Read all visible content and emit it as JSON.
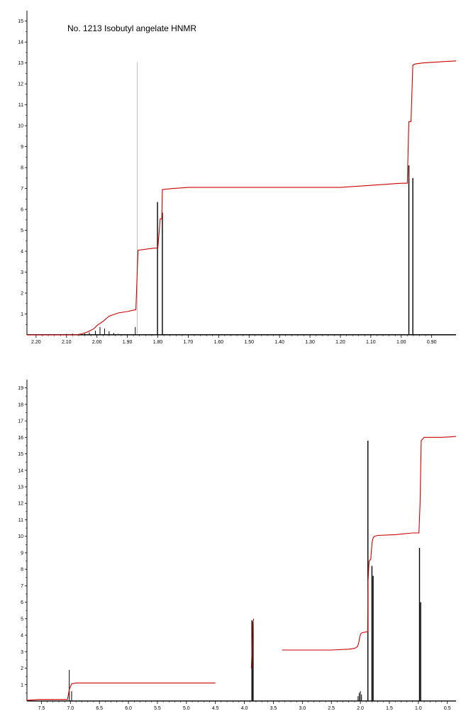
{
  "chart_data": [
    {
      "type": "line",
      "title": "No. 1213 Isobutyl angelate  HNMR",
      "xlabel": "",
      "ylabel": "",
      "x_reversed": true,
      "xlim": [
        2.23,
        0.82
      ],
      "ylim": [
        0,
        15.5
      ],
      "x_ticks": [
        "2.20",
        "2.10",
        "2.00",
        "1.90",
        "1.80",
        "1.70",
        "1.60",
        "1.50",
        "1.40",
        "1.30",
        "1.20",
        "1.10",
        "1.00",
        "0.90"
      ],
      "y_ticks": [
        "1",
        "2",
        "3",
        "4",
        "5",
        "6",
        "7",
        "8",
        "9",
        "10",
        "11",
        "12",
        "13",
        "14",
        "15"
      ],
      "colors": {
        "spectrum": "#000000",
        "integral": "#cc0000"
      },
      "spectrum_peaks": [
        {
          "x": 2.1,
          "y": 0.05
        },
        {
          "x": 2.08,
          "y": 0.06
        },
        {
          "x": 2.06,
          "y": 0.05
        },
        {
          "x": 2.04,
          "y": 0.07
        },
        {
          "x": 2.025,
          "y": 0.12
        },
        {
          "x": 2.005,
          "y": 0.2
        },
        {
          "x": 1.99,
          "y": 0.38
        },
        {
          "x": 1.975,
          "y": 0.3
        },
        {
          "x": 1.96,
          "y": 0.18
        },
        {
          "x": 1.945,
          "y": 0.1
        },
        {
          "x": 1.93,
          "y": 0.05
        },
        {
          "x": 1.874,
          "y": 0.38
        },
        {
          "x": 1.868,
          "y": 13.05
        },
        {
          "x": 1.801,
          "y": 6.35
        },
        {
          "x": 1.785,
          "y": 5.85
        },
        {
          "x": 0.975,
          "y": 8.1
        },
        {
          "x": 0.962,
          "y": 7.5
        }
      ],
      "integral_curve": {
        "x": [
          2.23,
          2.07,
          2.05,
          2.03,
          2.01,
          2.0,
          1.98,
          1.96,
          1.93,
          1.9,
          1.875,
          1.872,
          1.865,
          1.81,
          1.8,
          1.792,
          1.787,
          1.785,
          1.75,
          1.7,
          1.5,
          1.2,
          1.0,
          0.98,
          0.975,
          0.968,
          0.962,
          0.955,
          0.93,
          0.82
        ],
        "y": [
          0.0,
          0.0,
          0.05,
          0.15,
          0.3,
          0.45,
          0.65,
          0.9,
          1.05,
          1.12,
          1.2,
          1.2,
          4.05,
          4.15,
          4.15,
          5.55,
          5.55,
          6.95,
          7.0,
          7.05,
          7.05,
          7.05,
          7.25,
          7.25,
          10.2,
          10.2,
          12.9,
          12.95,
          13.0,
          13.1
        ]
      }
    },
    {
      "type": "line",
      "title": "",
      "xlabel": "",
      "ylabel": "",
      "x_reversed": true,
      "xlim": [
        7.75,
        0.35
      ],
      "ylim": [
        0,
        19.5
      ],
      "x_ticks": [
        "7.5",
        "7.0",
        "6.5",
        "6.0",
        "5.5",
        "5.0",
        "4.5",
        "4.0",
        "3.5",
        "3.0",
        "2.5",
        "2.0",
        "1.5",
        "1.0",
        "0.5"
      ],
      "y_ticks": [
        "1",
        "2",
        "3",
        "4",
        "5",
        "6",
        "7",
        "8",
        "9",
        "10",
        "11",
        "12",
        "13",
        "14",
        "15",
        "16",
        "17",
        "18",
        "19"
      ],
      "colors": {
        "spectrum": "#000000",
        "integral": "#cc0000"
      },
      "spectrum_peaks": [
        {
          "x": 7.02,
          "y": 1.9
        },
        {
          "x": 6.98,
          "y": 0.6
        },
        {
          "x": 3.87,
          "y": 4.9
        },
        {
          "x": 3.85,
          "y": 4.8
        },
        {
          "x": 2.04,
          "y": 0.3
        },
        {
          "x": 2.02,
          "y": 0.5
        },
        {
          "x": 2.0,
          "y": 0.6
        },
        {
          "x": 1.98,
          "y": 0.4
        },
        {
          "x": 1.87,
          "y": 15.8
        },
        {
          "x": 1.8,
          "y": 8.2
        },
        {
          "x": 1.78,
          "y": 7.6
        },
        {
          "x": 0.98,
          "y": 9.3
        },
        {
          "x": 0.96,
          "y": 6.0
        }
      ],
      "integral_curve_segments": [
        {
          "x": [
            7.75,
            7.55,
            7.05,
            7.02,
            6.98,
            6.9,
            6.5,
            6.0,
            5.5,
            5.0,
            4.5
          ],
          "y": [
            0.05,
            0.1,
            0.1,
            0.7,
            1.05,
            1.1,
            1.1,
            1.1,
            1.1,
            1.1,
            1.1
          ]
        },
        {
          "x": [
            3.88,
            3.87,
            3.86,
            3.85,
            3.84
          ],
          "y": [
            2.0,
            3.0,
            4.0,
            4.8,
            5.0
          ]
        },
        {
          "x": [
            3.35,
            3.0,
            2.5,
            2.2,
            2.1,
            2.05,
            2.03,
            2.01,
            1.99,
            1.97,
            1.9,
            1.875,
            1.87,
            1.85,
            1.82,
            1.8,
            1.78,
            1.76,
            1.7,
            1.4,
            1.1,
            1.0,
            0.99,
            0.97,
            0.95,
            0.9,
            0.6,
            0.35
          ],
          "y": [
            3.1,
            3.1,
            3.1,
            3.15,
            3.2,
            3.3,
            3.5,
            3.9,
            4.1,
            4.15,
            4.2,
            4.2,
            7.1,
            8.5,
            8.6,
            9.6,
            9.9,
            10.0,
            10.05,
            10.1,
            10.2,
            10.2,
            10.2,
            12.0,
            15.8,
            16.0,
            16.0,
            16.05
          ]
        }
      ]
    }
  ]
}
